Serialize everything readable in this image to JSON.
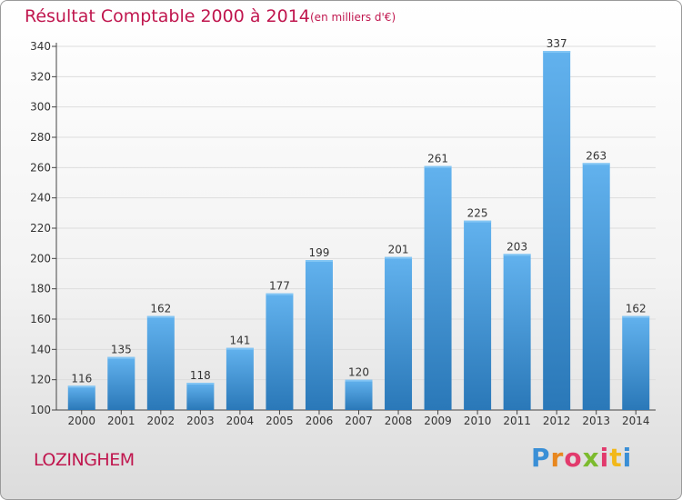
{
  "header": {
    "title": "Résultat Comptable 2000 à 2014",
    "subtitle": "(en milliers d'€)"
  },
  "footer": {
    "town": "LOZINGHEM",
    "logo_text": "Proxiti"
  },
  "colors": {
    "accent": "#c0164e",
    "bar_top": "#62b2ee",
    "bar_bottom": "#2a78b8",
    "grid": "#dddddd"
  },
  "chart_data": {
    "type": "bar",
    "title": "Résultat Comptable 2000 à 2014",
    "subtitle": "(en milliers d'€)",
    "categories": [
      "2000",
      "2001",
      "2002",
      "2003",
      "2004",
      "2005",
      "2006",
      "2007",
      "2008",
      "2009",
      "2010",
      "2011",
      "2012",
      "2013",
      "2014"
    ],
    "values": [
      116,
      135,
      162,
      118,
      141,
      177,
      199,
      120,
      201,
      261,
      225,
      203,
      337,
      263,
      162
    ],
    "ylim": [
      100,
      340
    ],
    "yticks": [
      100,
      120,
      140,
      160,
      180,
      200,
      220,
      240,
      260,
      280,
      300,
      320,
      340
    ],
    "grid": true,
    "data_labels": true
  }
}
